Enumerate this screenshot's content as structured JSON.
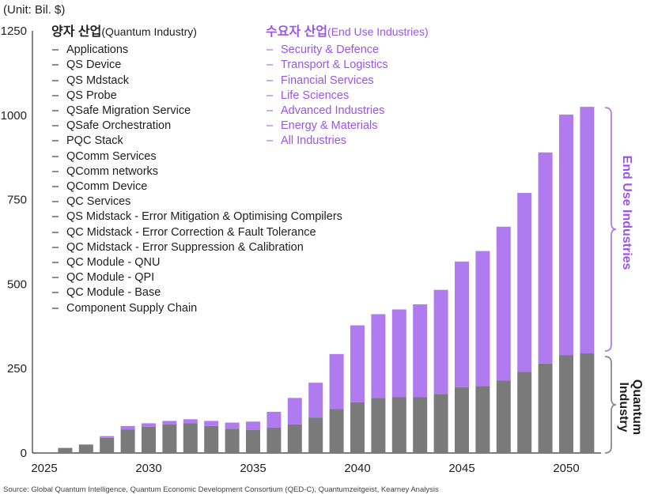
{
  "unit_label": "(Unit: Bil. $)",
  "source": "Source: Global Quantum Intelligence, Quantum Economic Development Consortium (QED-C), Quantumzeitgeist, Kearney Analysis",
  "legend_quantum": {
    "title_kr": "양자 산업",
    "title_en": "(Quantum Industry)",
    "items": [
      "Applications",
      "QS Device",
      "QS Mdstack",
      "QS Probe",
      "QSafe Migration Service",
      "QSafe Orchestration",
      "PQC Stack",
      "QComm Services",
      "QComm networks",
      "QComm Device",
      "QC Services",
      "QS Midstack - Error Mitigation & Optimising Compilers",
      "QC Midstack - Error Correction & Fault Tolerance",
      "QC Midstack - Error Suppression & Calibration",
      "QC Module - QNU",
      "QC Module - QPI",
      "QC Module - Base",
      "Component Supply Chain"
    ]
  },
  "legend_end_use": {
    "title_kr": "수요자 산업",
    "title_en": "(End Use Industries)",
    "items": [
      "Security & Defence",
      "Transport & Logistics",
      "Financial Services",
      "Life Sciences",
      "Advanced Industries",
      "Energy & Materials",
      "All Industries"
    ]
  },
  "brace_labels": {
    "end_use": "End Use Industries",
    "quantum": "Quantum Industry"
  },
  "colors": {
    "quantum": "#7a7a7a",
    "end_use": "#b07bee",
    "end_use_text": "#9b55e8",
    "axis": "#333333"
  },
  "chart_data": {
    "type": "bar",
    "stacked": true,
    "x": [
      2025,
      2026,
      2027,
      2028,
      2029,
      2030,
      2031,
      2032,
      2033,
      2034,
      2035,
      2036,
      2037,
      2038,
      2039,
      2040,
      2041,
      2042,
      2043,
      2044,
      2045,
      2046,
      2047,
      2048,
      2049,
      2050,
      2051
    ],
    "x_ticks": [
      "2025",
      "2030",
      "2035",
      "2040",
      "2045",
      "2050"
    ],
    "y_ticks": [
      "0",
      "250",
      "500",
      "750",
      "1000",
      "1250"
    ],
    "ylim": [
      0,
      1250
    ],
    "series": [
      {
        "name": "Quantum Industry",
        "values": [
          2,
          15,
          25,
          45,
          70,
          78,
          85,
          88,
          80,
          72,
          68,
          75,
          85,
          105,
          130,
          150,
          163,
          165,
          165,
          175,
          195,
          198,
          215,
          240,
          265,
          290,
          295
        ]
      },
      {
        "name": "End Use Industries",
        "values": [
          0,
          0,
          0,
          5,
          10,
          10,
          10,
          12,
          15,
          18,
          25,
          47,
          78,
          103,
          163,
          228,
          248,
          260,
          275,
          308,
          372,
          400,
          455,
          530,
          625,
          712,
          730
        ]
      }
    ]
  }
}
